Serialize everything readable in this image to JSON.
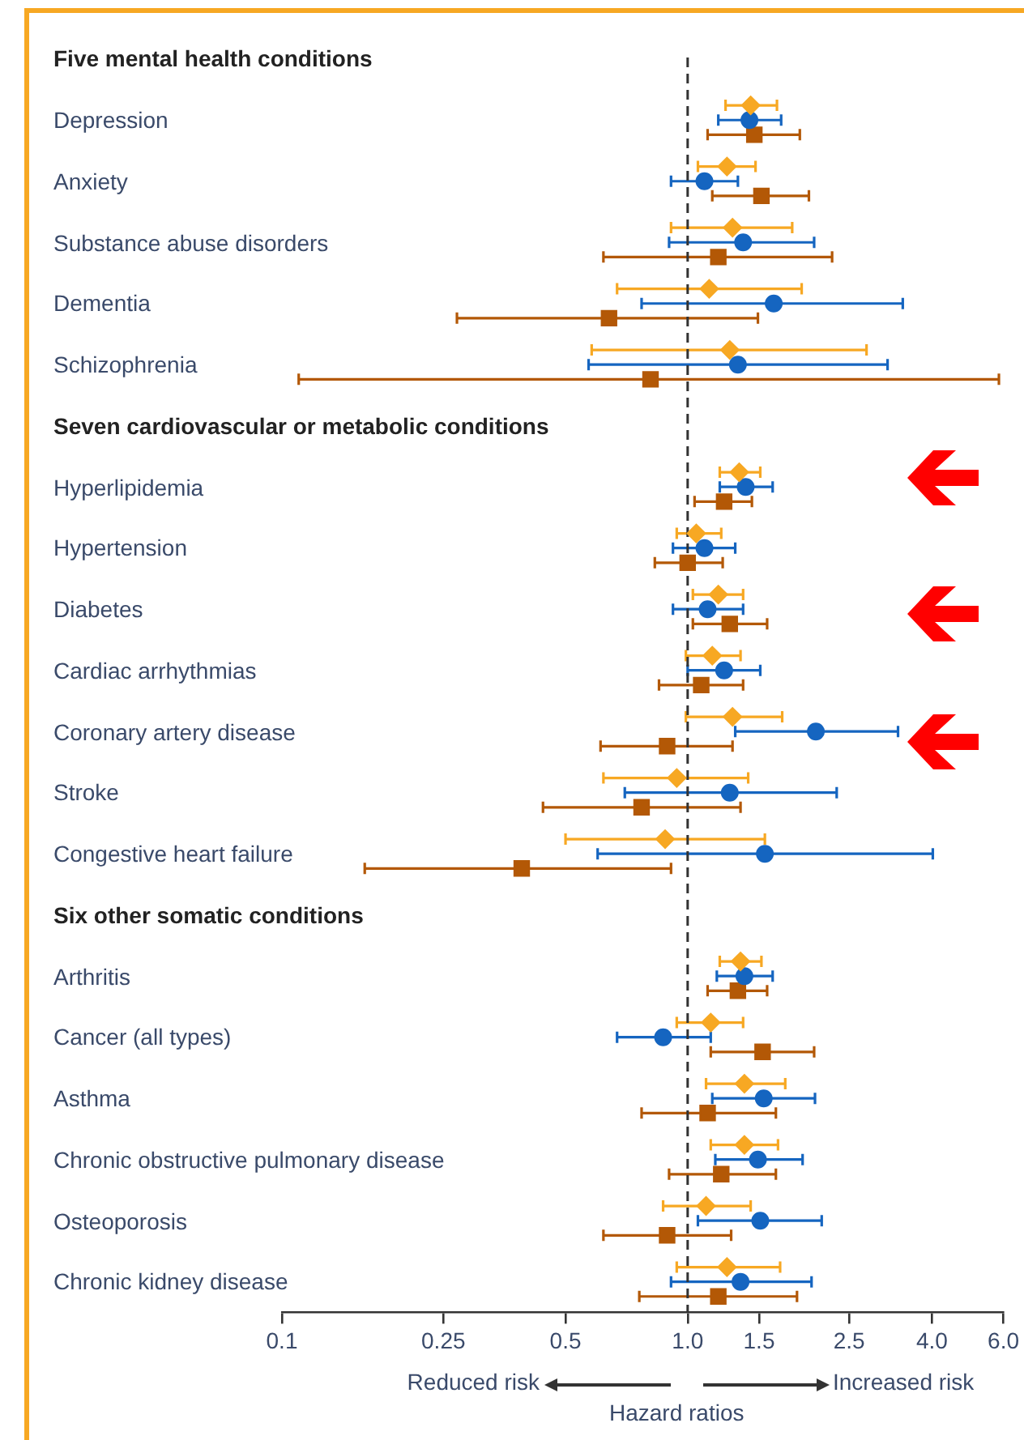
{
  "chart_data": {
    "type": "scatter",
    "orientation": "horizontal",
    "log": "x",
    "xlabel": "Hazard ratios",
    "annotations": [
      "Reduced risk",
      "Increased risk"
    ],
    "categories": [
      "Five mental health conditions",
      "Depression",
      "Anxiety",
      "Substance abuse disorders",
      "Dementia",
      "Schizophrenia",
      "Seven cardiovascular or metabolic conditions",
      "Hyperlipidemia",
      "Hypertension",
      "Diabetes",
      "Cardiac arrhythmias",
      "Coronary artery disease",
      "Stroke",
      "Congestive heart failure",
      "Six other somatic conditions",
      "Arthritis",
      "Cancer (all types)",
      "Asthma",
      "Chronic obstructive pulmonary disease",
      "Osteoporosis",
      "Chronic kidney disease"
    ],
    "series": [
      {
        "color": "#f7a823",
        "marker": "diamond",
        "values": [
          null,
          1.43,
          1.25,
          1.29,
          1.13,
          1.27,
          null,
          1.34,
          1.05,
          1.19,
          1.15,
          1.29,
          0.94,
          0.88,
          null,
          1.35,
          1.14,
          1.38,
          1.38,
          1.11,
          1.25
        ],
        "errors": [
          null,
          [
            1.24,
            1.66
          ],
          [
            1.06,
            1.47
          ],
          [
            0.91,
            1.81
          ],
          [
            0.67,
            1.91
          ],
          [
            0.58,
            2.76
          ],
          null,
          [
            1.2,
            1.51
          ],
          [
            0.94,
            1.21
          ],
          [
            1.03,
            1.37
          ],
          [
            0.99,
            1.35
          ],
          [
            0.99,
            1.71
          ],
          [
            0.62,
            1.41
          ],
          [
            0.5,
            1.55
          ],
          null,
          [
            1.2,
            1.52
          ],
          [
            0.94,
            1.37
          ],
          [
            1.11,
            1.74
          ],
          [
            1.14,
            1.67
          ],
          [
            0.87,
            1.43
          ],
          [
            0.94,
            1.69
          ]
        ]
      },
      {
        "color": "#1565c0",
        "marker": "circle",
        "values": [
          null,
          1.42,
          1.1,
          1.37,
          1.63,
          1.33,
          null,
          1.39,
          1.1,
          1.12,
          1.23,
          2.07,
          1.27,
          1.55,
          null,
          1.38,
          0.87,
          1.54,
          1.49,
          1.51,
          1.35
        ],
        "errors": [
          null,
          [
            1.19,
            1.7
          ],
          [
            0.91,
            1.33
          ],
          [
            0.9,
            2.05
          ],
          [
            0.77,
            3.39
          ],
          [
            0.57,
            3.11
          ],
          null,
          [
            1.2,
            1.62
          ],
          [
            0.92,
            1.31
          ],
          [
            0.92,
            1.37
          ],
          [
            1.0,
            1.51
          ],
          [
            1.31,
            3.3
          ],
          [
            0.7,
            2.33
          ],
          [
            0.6,
            4.02
          ],
          null,
          [
            1.18,
            1.62
          ],
          [
            0.67,
            1.14
          ],
          [
            1.15,
            2.06
          ],
          [
            1.17,
            1.92
          ],
          [
            1.06,
            2.14
          ],
          [
            0.91,
            2.02
          ]
        ]
      },
      {
        "color": "#b35806",
        "marker": "square",
        "values": [
          null,
          1.46,
          1.52,
          1.19,
          0.64,
          0.81,
          null,
          1.23,
          1.0,
          1.27,
          1.08,
          0.89,
          0.77,
          0.39,
          null,
          1.33,
          1.53,
          1.12,
          1.21,
          0.89,
          1.19
        ],
        "errors": [
          null,
          [
            1.12,
            1.89
          ],
          [
            1.15,
            1.99
          ],
          [
            0.62,
            2.27
          ],
          [
            0.27,
            1.49
          ],
          [
            0.11,
            5.85
          ],
          null,
          [
            1.04,
            1.44
          ],
          [
            0.83,
            1.22
          ],
          [
            1.03,
            1.57
          ],
          [
            0.85,
            1.37
          ],
          [
            0.61,
            1.29
          ],
          [
            0.44,
            1.35
          ],
          [
            0.16,
            0.91
          ],
          null,
          [
            1.12,
            1.57
          ],
          [
            1.14,
            2.05
          ],
          [
            0.77,
            1.65
          ],
          [
            0.9,
            1.65
          ],
          [
            0.62,
            1.28
          ],
          [
            0.76,
            1.86
          ]
        ]
      }
    ],
    "xlim": [
      0.1,
      6
    ],
    "xticks": [
      0.1,
      0.25,
      0.5,
      {
        "value": 1,
        "label": "1.0"
      },
      1.5,
      2.5,
      {
        "value": 4,
        "label": "4.0"
      },
      {
        "value": 6,
        "label": "6.0"
      }
    ],
    "ref_lines": [
      {
        "axis": "x",
        "value": 1,
        "color": "#333333",
        "line_style": "dashed"
      }
    ],
    "grid": false,
    "legend": false
  }
}
